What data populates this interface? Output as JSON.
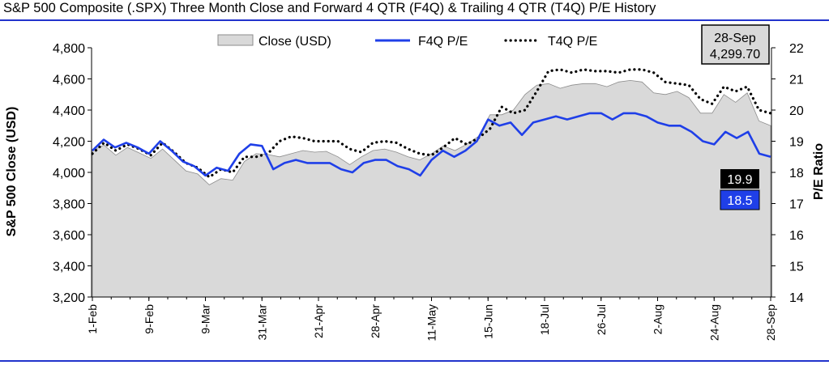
{
  "title": "S&P 500 Composite (.SPX) Three Month Close and Forward 4 QTR (F4Q) & Trailing 4 QTR (T4Q) P/E History",
  "colors": {
    "accent_rule": "#2233cc",
    "close_fill": "#d9d9d9",
    "f4q_line": "#1f3fe8",
    "t4q_line": "#000000",
    "f4q_tag_bg": "#1f3fe8",
    "t4q_tag_bg": "#000000"
  },
  "legend": {
    "close": "Close (USD)",
    "f4q": "F4Q P/E",
    "t4q": "T4Q P/E"
  },
  "latest_box": {
    "date": "28-Sep",
    "value": "4,299.70"
  },
  "end_tags": {
    "t4q": "19.9",
    "f4q": "18.5"
  },
  "chart_data": {
    "type": "area",
    "title": "S&P 500 Composite (.SPX) Three Month Close and Forward 4 QTR (F4Q) & Trailing 4 QTR (T4Q) P/E History",
    "ylabel_left": "S&P 500 Close (USD)",
    "ylabel_right": "P/E Ratio",
    "ylim_left": [
      3200,
      4800
    ],
    "ylim_right": [
      14,
      22
    ],
    "yticks_left": [
      "3,200",
      "3,400",
      "3,600",
      "3,800",
      "4,000",
      "4,200",
      "4,400",
      "4,600",
      "4,800"
    ],
    "yticks_right": [
      "14",
      "15",
      "16",
      "17",
      "18",
      "19",
      "20",
      "21",
      "22"
    ],
    "xticks": [
      "1-Feb",
      "9-Feb",
      "9-Mar",
      "31-Mar",
      "21-Apr",
      "28-Apr",
      "11-May",
      "15-Jun",
      "18-Jul",
      "26-Jul",
      "2-Aug",
      "24-Aug",
      "28-Sep"
    ],
    "legend_position": "top",
    "grid": false,
    "series": [
      {
        "name": "Close (USD)",
        "axis": "left",
        "kind": "area",
        "values": [
          4140,
          4175,
          4110,
          4160,
          4125,
          4090,
          4150,
          4080,
          4010,
          3990,
          3920,
          3960,
          3950,
          4070,
          4120,
          4115,
          4100,
          4120,
          4140,
          4130,
          4135,
          4100,
          4050,
          4100,
          4140,
          4150,
          4130,
          4100,
          4080,
          4120,
          4170,
          4140,
          4180,
          4230,
          4370,
          4370,
          4400,
          4500,
          4560,
          4570,
          4540,
          4560,
          4570,
          4570,
          4550,
          4580,
          4590,
          4580,
          4510,
          4500,
          4520,
          4480,
          4380,
          4380,
          4500,
          4450,
          4510,
          4330,
          4299.7
        ]
      },
      {
        "name": "F4Q P/E",
        "axis": "right",
        "kind": "line",
        "values": [
          18.7,
          19.05,
          18.8,
          18.95,
          18.8,
          18.6,
          19.0,
          18.7,
          18.35,
          18.2,
          17.9,
          18.15,
          18.05,
          18.6,
          18.9,
          18.85,
          18.1,
          18.3,
          18.4,
          18.3,
          18.3,
          18.3,
          18.1,
          18.0,
          18.3,
          18.4,
          18.4,
          18.2,
          18.1,
          17.9,
          18.4,
          18.7,
          18.5,
          18.7,
          19.0,
          19.7,
          19.5,
          19.6,
          19.2,
          19.6,
          19.7,
          19.8,
          19.7,
          19.8,
          19.9,
          19.9,
          19.7,
          19.9,
          19.9,
          19.8,
          19.6,
          19.5,
          19.5,
          19.3,
          19.0,
          18.9,
          19.3,
          19.1,
          19.3,
          18.6,
          18.5
        ]
      },
      {
        "name": "T4Q P/E",
        "axis": "right",
        "kind": "dotted",
        "values": [
          18.6,
          18.95,
          18.7,
          18.9,
          18.75,
          18.55,
          18.95,
          18.65,
          18.3,
          18.15,
          17.85,
          18.1,
          18.0,
          18.5,
          18.5,
          18.6,
          19.0,
          19.15,
          19.1,
          19.0,
          19.0,
          19.0,
          18.75,
          18.65,
          18.95,
          19.0,
          18.95,
          18.75,
          18.6,
          18.55,
          18.8,
          19.1,
          18.9,
          19.1,
          19.4,
          20.1,
          19.9,
          20.0,
          20.6,
          21.25,
          21.3,
          21.2,
          21.3,
          21.25,
          21.25,
          21.2,
          21.3,
          21.3,
          21.2,
          20.9,
          20.85,
          20.8,
          20.35,
          20.2,
          20.75,
          20.6,
          20.75,
          20.0,
          19.9
        ]
      }
    ]
  }
}
